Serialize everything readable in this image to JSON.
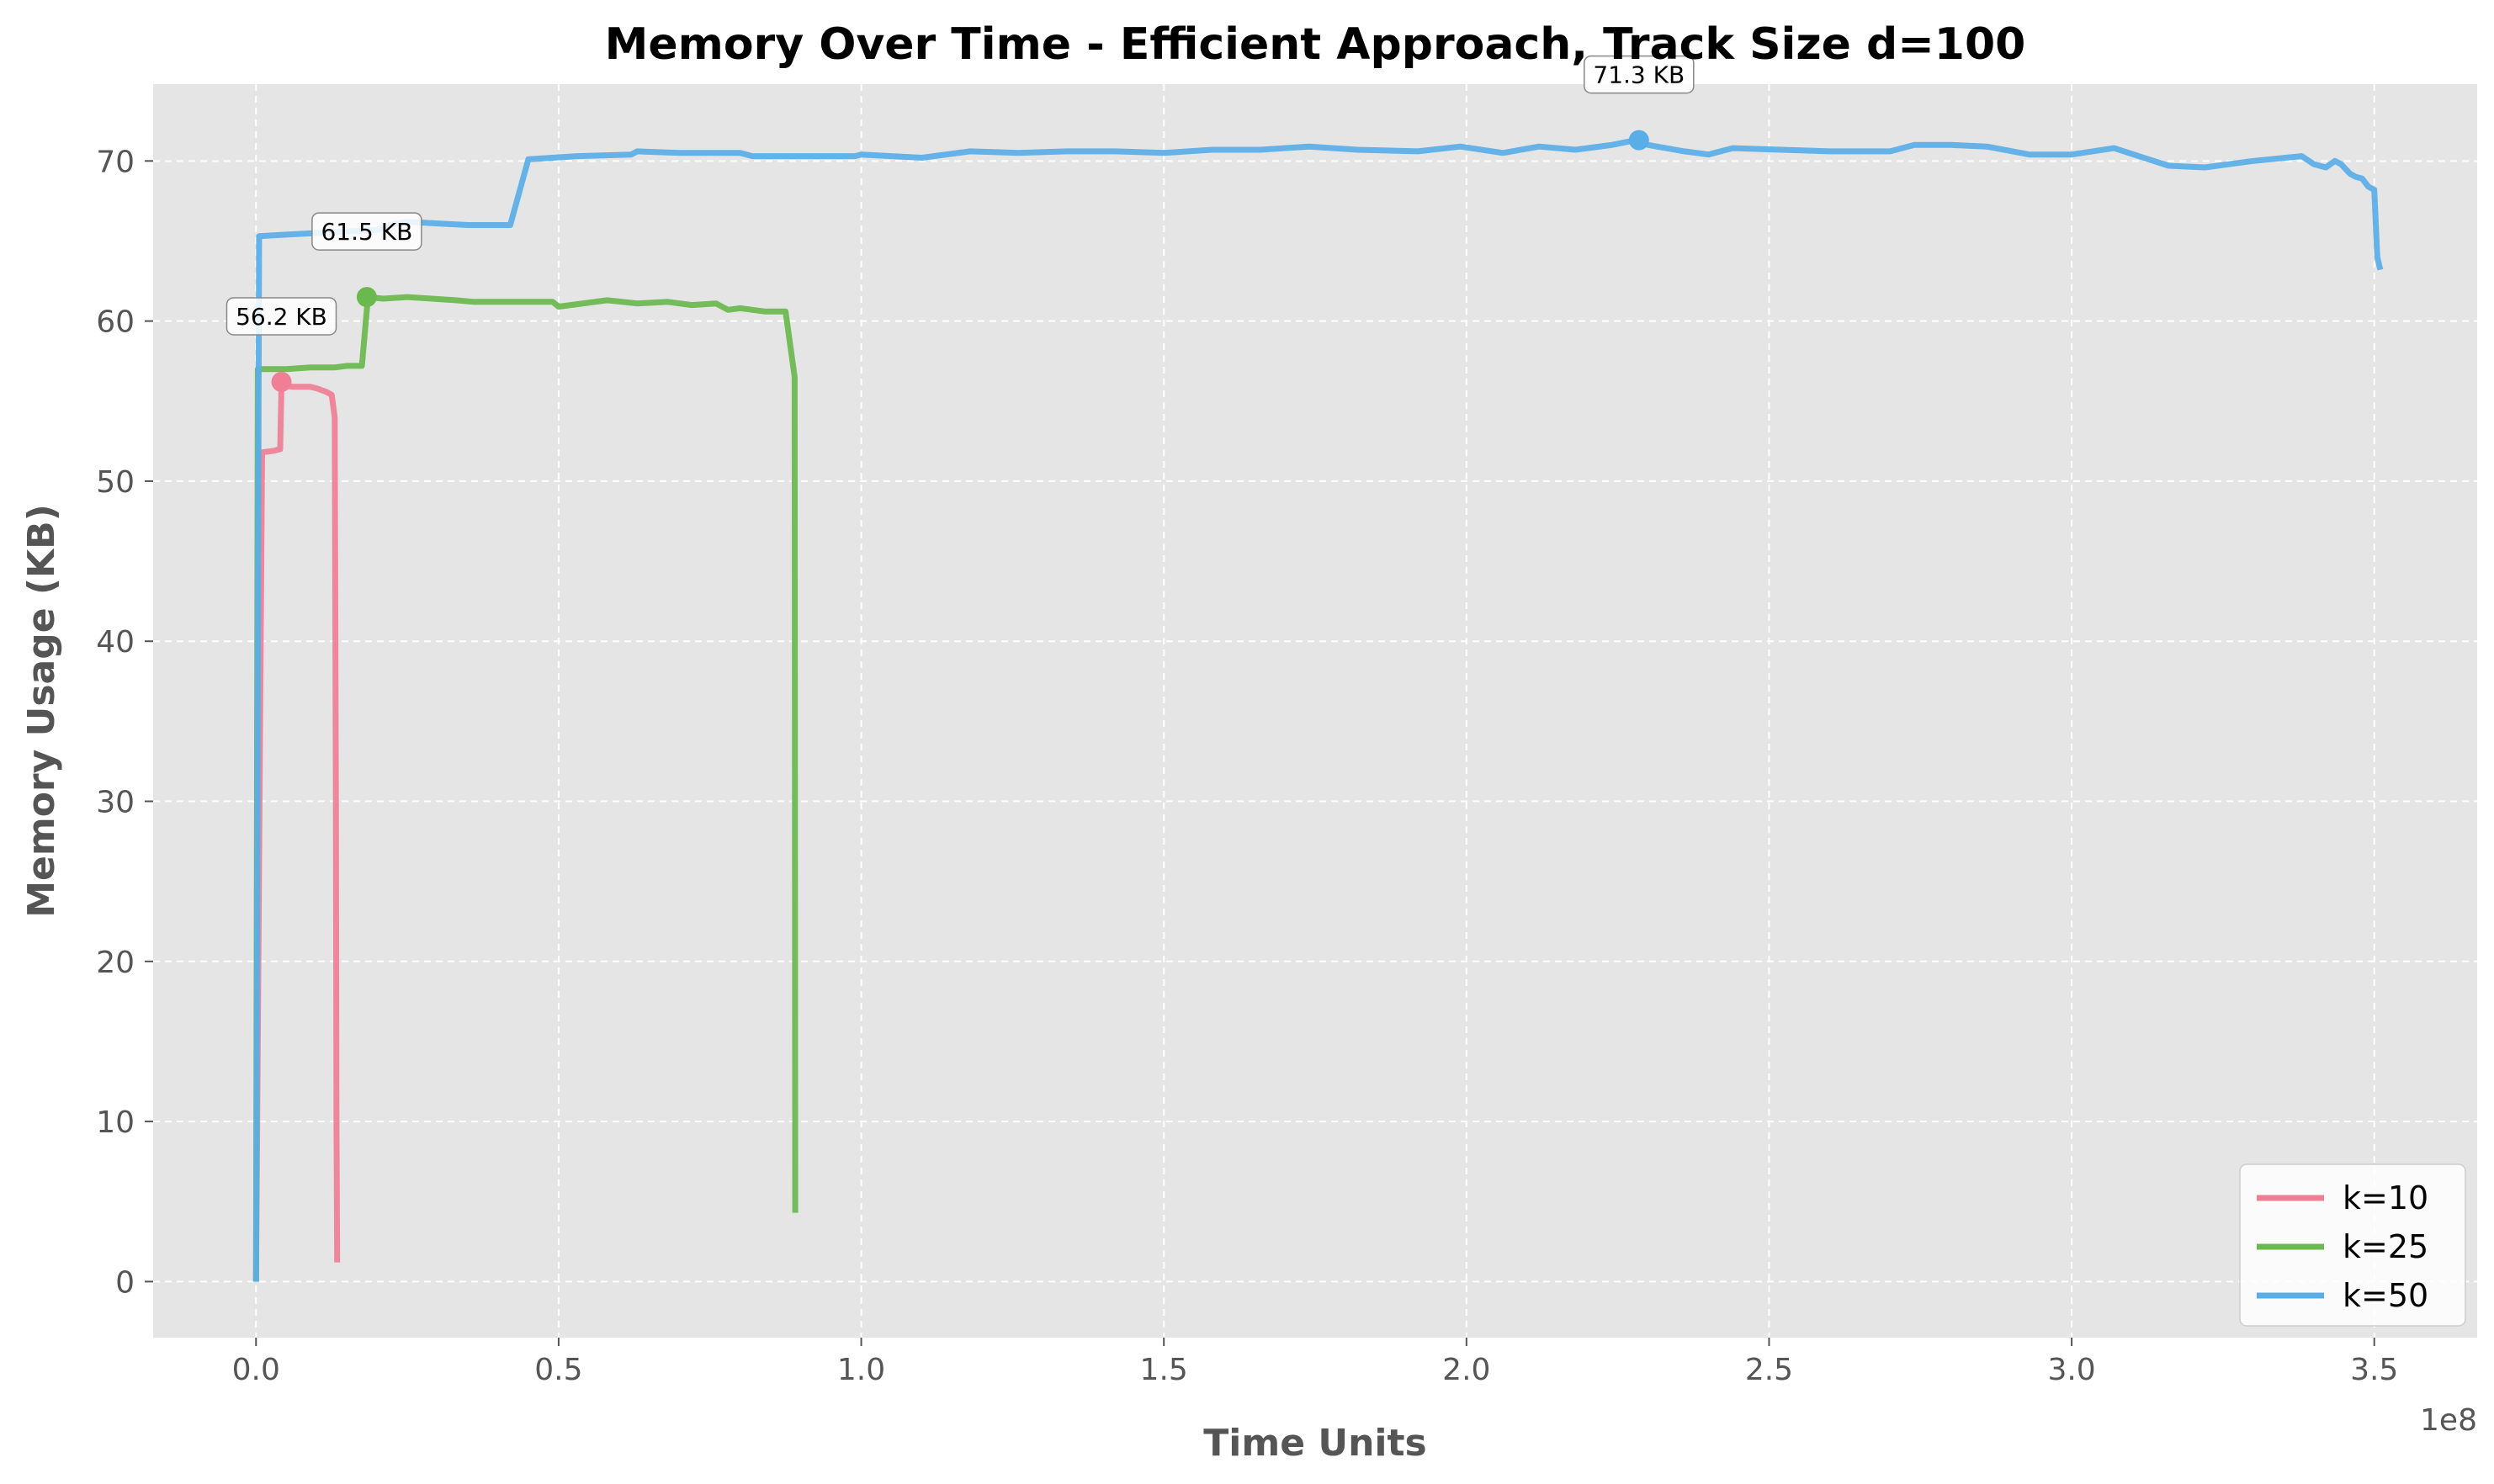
{
  "chart_data": {
    "type": "line",
    "title": "Memory Over Time - Efficient Approach, Track Size d=100",
    "xlabel": "Time Units",
    "ylabel": "Memory Usage (KB)",
    "x_offset_label": "1e8",
    "xlim": [
      -0.17,
      3.67
    ],
    "ylim": [
      -3.5,
      74.8
    ],
    "x_ticks": [
      0.0,
      0.5,
      1.0,
      1.5,
      2.0,
      2.5,
      3.0,
      3.5
    ],
    "x_tick_labels": [
      "0.0",
      "0.5",
      "1.0",
      "1.5",
      "2.0",
      "2.5",
      "3.0",
      "3.5"
    ],
    "y_ticks": [
      0,
      10,
      20,
      30,
      40,
      50,
      60,
      70
    ],
    "y_tick_labels": [
      "0",
      "10",
      "20",
      "30",
      "40",
      "50",
      "60",
      "70"
    ],
    "grid": true,
    "legend_position": "bottom-right",
    "series": [
      {
        "name": "k=10",
        "color": "#f07f96",
        "x": [
          0.0,
          0.01,
          0.03,
          0.04,
          0.042,
          0.06,
          0.09,
          0.1,
          0.115,
          0.125,
          0.13,
          0.132,
          0.133,
          0.134
        ],
        "y": [
          0.0,
          51.8,
          51.9,
          52.0,
          56.0,
          55.9,
          55.9,
          55.8,
          55.6,
          55.4,
          54.0,
          30.0,
          10.0,
          1.2
        ],
        "peak": {
          "x": 0.042,
          "y": 56.2,
          "label": "56.2 KB"
        }
      },
      {
        "name": "k=25",
        "color": "#6ab84e",
        "x": [
          0.0,
          0.003,
          0.05,
          0.09,
          0.13,
          0.15,
          0.175,
          0.185,
          0.21,
          0.25,
          0.29,
          0.33,
          0.36,
          0.4,
          0.46,
          0.49,
          0.5,
          0.52,
          0.58,
          0.63,
          0.68,
          0.72,
          0.76,
          0.78,
          0.8,
          0.82,
          0.84,
          0.875,
          0.89,
          0.891
        ],
        "y": [
          0.0,
          57.0,
          57.0,
          57.1,
          57.1,
          57.2,
          57.2,
          61.5,
          61.4,
          61.5,
          61.4,
          61.3,
          61.2,
          61.2,
          61.2,
          61.2,
          60.9,
          61.0,
          61.3,
          61.1,
          61.2,
          61.0,
          61.1,
          60.7,
          60.8,
          60.7,
          60.6,
          60.6,
          56.5,
          4.3
        ],
        "peak": {
          "x": 0.183,
          "y": 61.5,
          "label": "61.5 KB"
        }
      },
      {
        "name": "k=50",
        "color": "#5aaee8",
        "x": [
          0.0,
          0.005,
          0.05,
          0.1,
          0.2,
          0.23,
          0.25,
          0.3,
          0.35,
          0.4,
          0.42,
          0.45,
          0.53,
          0.62,
          0.63,
          0.7,
          0.8,
          0.82,
          0.9,
          0.99,
          1.0,
          1.1,
          1.18,
          1.26,
          1.34,
          1.42,
          1.5,
          1.58,
          1.66,
          1.74,
          1.82,
          1.92,
          1.99,
          2.06,
          2.12,
          2.18,
          2.24,
          2.28,
          2.3,
          2.36,
          2.4,
          2.44,
          2.52,
          2.6,
          2.7,
          2.74,
          2.8,
          2.86,
          2.93,
          3.0,
          3.07,
          3.16,
          3.22,
          3.3,
          3.38,
          3.4,
          3.42,
          3.435,
          3.445,
          3.46,
          3.47,
          3.48,
          3.49,
          3.5,
          3.505,
          3.51
        ],
        "y": [
          0.0,
          65.3,
          65.4,
          65.5,
          65.7,
          66.1,
          66.2,
          66.1,
          66.0,
          66.0,
          66.0,
          70.1,
          70.3,
          70.4,
          70.6,
          70.5,
          70.5,
          70.3,
          70.3,
          70.3,
          70.4,
          70.2,
          70.6,
          70.5,
          70.6,
          70.6,
          70.5,
          70.7,
          70.7,
          70.9,
          70.7,
          70.6,
          70.9,
          70.5,
          70.9,
          70.7,
          71.0,
          71.3,
          71.0,
          70.6,
          70.4,
          70.8,
          70.7,
          70.6,
          70.6,
          71.0,
          71.0,
          70.9,
          70.4,
          70.4,
          70.8,
          69.7,
          69.6,
          70.0,
          70.3,
          69.8,
          69.6,
          70.0,
          69.8,
          69.2,
          69.0,
          68.9,
          68.4,
          68.2,
          64.0,
          63.2
        ],
        "peak": {
          "x": 2.285,
          "y": 71.3,
          "label": "71.3 KB"
        }
      }
    ]
  }
}
